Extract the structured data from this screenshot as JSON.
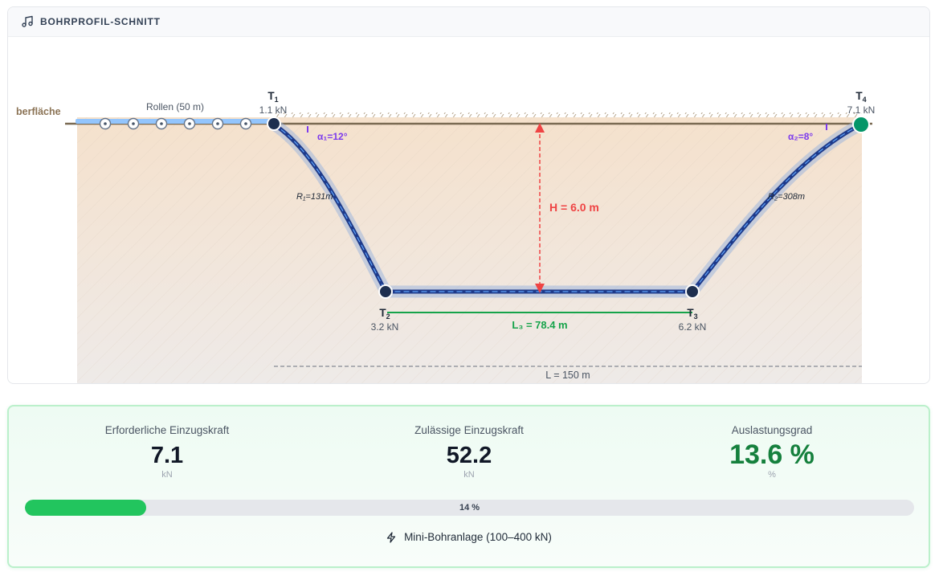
{
  "panel": {
    "title": "BOHRPROFIL-SCHNITT",
    "icon": "music-note-icon"
  },
  "diagram": {
    "surface_label": "berfläche",
    "rollers_label": "Rollen (50 m)",
    "points": [
      {
        "name": "T",
        "sub": "1",
        "force": "1.1 kN"
      },
      {
        "name": "T",
        "sub": "2",
        "force": "3.2 kN"
      },
      {
        "name": "T",
        "sub": "3",
        "force": "6.2 kN"
      },
      {
        "name": "T",
        "sub": "4",
        "force": "7.1 kN"
      }
    ],
    "angle_entry": "α₁=12°",
    "angle_exit": "α₂=8°",
    "radius_entry": "R₁=131m",
    "radius_exit": "R₂=308m",
    "depth_label": "H = 6.0 m",
    "straight_label": "L₃ = 78.4 m",
    "total_label": "L = 150 m",
    "colors": {
      "pipe": "#1e3a8a",
      "pipe_highlight": "#60a5fa",
      "depth": "#ef4444",
      "length": "#16a34a",
      "angle": "#7c3aed",
      "ground": "#7a6a52",
      "exit_node": "#059669"
    }
  },
  "results": {
    "required": {
      "label": "Erforderliche Einzugskraft",
      "value": "7.1",
      "unit": "kN"
    },
    "allowed": {
      "label": "Zulässige Einzugskraft",
      "value": "52.2",
      "unit": "kN"
    },
    "utilization": {
      "label": "Auslastungsgrad",
      "value": "13.6 %",
      "unit": "%"
    },
    "progress_percent": 13.6,
    "progress_label": "14 %",
    "rig_label": "Mini-Bohranlage (100–400 kN)",
    "rig_icon": "lightning-icon"
  }
}
